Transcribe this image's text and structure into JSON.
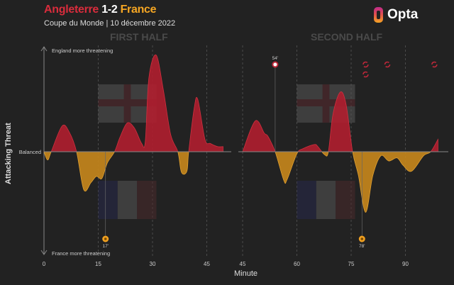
{
  "header": {
    "home": "Angleterre",
    "score": "1-2",
    "away": "France",
    "subtitle": "Coupe du Monde | 10 décembre 2022",
    "logo": "Opta"
  },
  "chart_data": {
    "type": "area",
    "xlabel": "Minute",
    "ylabel": "Attacking Threat",
    "top_label": "England more threatening",
    "bottom_label": "France more threatening",
    "baseline_label": "Balanced",
    "ylim": [
      -100,
      100
    ],
    "grid": "vertical dashed lines every 15 minutes",
    "colors": {
      "england": "#b01e2f",
      "france": "#c8871c",
      "baseline": "#888888"
    },
    "panels": [
      {
        "title": "FIRST HALF",
        "xticks": [
          0,
          15,
          30,
          45
        ],
        "xlim": [
          0,
          50
        ],
        "x": [
          0,
          1,
          2,
          5,
          7,
          9,
          11,
          13,
          14.5,
          16,
          17.5,
          19.5,
          21,
          23,
          25,
          27,
          28,
          29,
          31,
          33,
          35,
          37,
          38,
          39.5,
          40,
          41.5,
          42.5,
          44.5,
          46,
          48,
          49.5
        ],
        "y": [
          0,
          -8,
          0,
          25,
          19,
          0,
          -37,
          -30,
          -24,
          -26,
          -11,
          0,
          14,
          28,
          23,
          8,
          10,
          72,
          94,
          60,
          17,
          0,
          -20,
          -19,
          0,
          42,
          51,
          12,
          8,
          5,
          5
        ],
        "events": [
          {
            "team": "France",
            "type": "goal",
            "minute": 17,
            "label": "17'"
          }
        ],
        "flags": [
          "England",
          "France"
        ]
      },
      {
        "title": "SECOND HALF",
        "xticks": [
          45,
          60,
          75,
          90
        ],
        "xlim": [
          45,
          99
        ],
        "x": [
          45,
          48.5,
          51,
          52,
          54,
          56.4,
          57.3,
          60,
          61.7,
          64.8,
          65.8,
          67.7,
          68.7,
          70,
          72,
          73.6,
          75.4,
          77,
          79,
          81,
          83.2,
          85.4,
          87.7,
          89.3,
          91.7,
          95,
          97,
          99
        ],
        "y": [
          0,
          30,
          18,
          15,
          0,
          -28,
          -27,
          -2,
          3,
          7,
          5,
          -3,
          0,
          37,
          58,
          46,
          0,
          -23,
          -59,
          -23,
          -4,
          -9,
          -6,
          -13,
          -19,
          -4,
          0,
          12
        ],
        "events": [
          {
            "team": "England",
            "type": "penalty-goal",
            "minute": 54,
            "label": "54'"
          },
          {
            "team": "France",
            "type": "goal",
            "minute": 78,
            "label": "78'"
          },
          {
            "team": "England",
            "type": "substitution",
            "minute": 79,
            "row": 0
          },
          {
            "team": "England",
            "type": "substitution",
            "minute": 79,
            "row": 1
          },
          {
            "team": "England",
            "type": "substitution",
            "minute": 85,
            "row": 0
          },
          {
            "team": "England",
            "type": "substitution",
            "minute": 98,
            "row": 0
          }
        ],
        "flags": [
          "England",
          "France"
        ]
      }
    ]
  }
}
